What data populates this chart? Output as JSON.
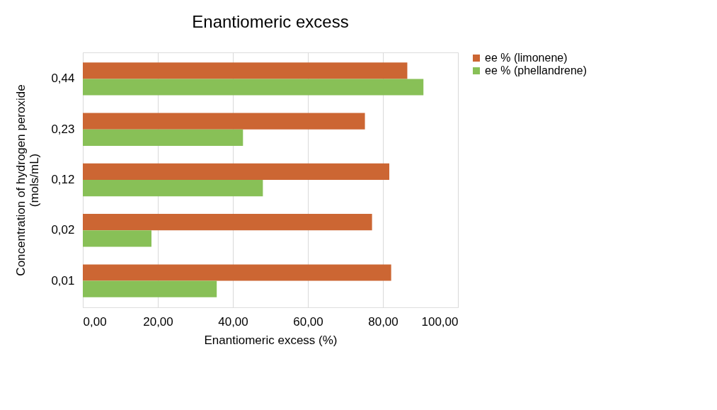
{
  "chart_data": {
    "type": "bar",
    "orientation": "horizontal",
    "title": "Enantiomeric excess",
    "xlabel": "Enantiomeric excess (%)",
    "ylabel": "Concentration of hydrogen peroxide\n(mols/mL)",
    "categories": [
      "0,44",
      "0,23",
      "0,12",
      "0,02",
      "0,01"
    ],
    "series": [
      {
        "name": "ee % (limonene)",
        "color": "#cc6633",
        "values": [
          86.5,
          75.2,
          81.7,
          77.1,
          82.2
        ]
      },
      {
        "name": "ee % (phellandrene)",
        "color": "#88c057",
        "values": [
          90.8,
          42.7,
          48.0,
          18.3,
          35.7
        ]
      }
    ],
    "xlim": [
      0,
      100
    ],
    "xticks": [
      {
        "value": 0,
        "label": "0,00"
      },
      {
        "value": 20,
        "label": "20,00"
      },
      {
        "value": 40,
        "label": "40,00"
      },
      {
        "value": 60,
        "label": "60,00"
      },
      {
        "value": 80,
        "label": "80,00"
      },
      {
        "value": 100,
        "label": "100,00"
      }
    ],
    "grid": "x",
    "legend": "right"
  }
}
